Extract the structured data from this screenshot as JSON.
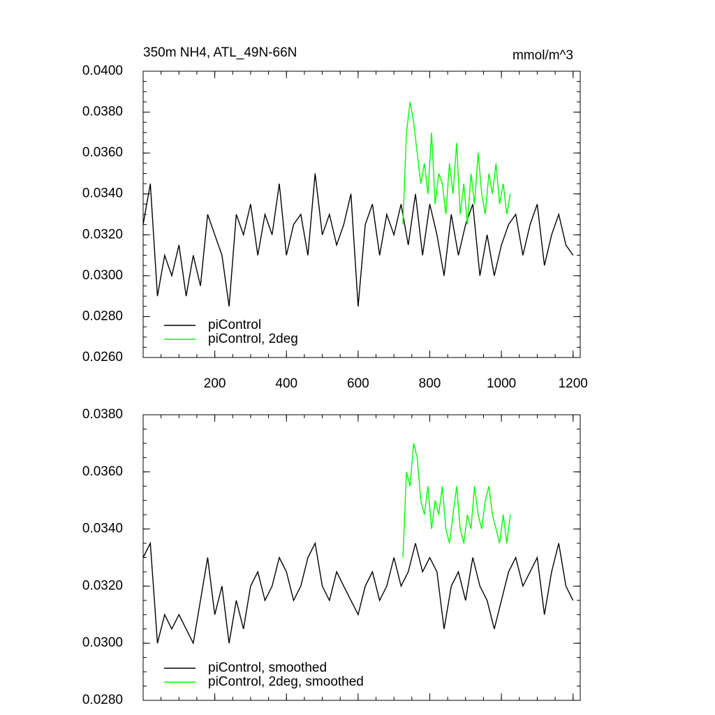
{
  "chart_data": [
    {
      "type": "line",
      "title": "350m NH4, ATL_49N-66N",
      "units_label": "mmol/m^3",
      "xlim": [
        0,
        1220
      ],
      "ylim": [
        0.026,
        0.04
      ],
      "xticks": [
        200,
        400,
        600,
        800,
        1000,
        1200
      ],
      "xtick_labels": true,
      "yticks": [
        {
          "value": 0.026,
          "label": "0.0260"
        },
        {
          "value": 0.028,
          "label": "0.0280"
        },
        {
          "value": 0.03,
          "label": "0.0300"
        },
        {
          "value": 0.032,
          "label": "0.0320"
        },
        {
          "value": 0.034,
          "label": "0.0340"
        },
        {
          "value": 0.036,
          "label": "0.0360"
        },
        {
          "value": 0.038,
          "label": "0.0380"
        },
        {
          "value": 0.04,
          "label": "0.0400"
        }
      ],
      "legend": "lower left",
      "series": [
        {
          "name": "piControl",
          "color": "#000000",
          "x": [
            0,
            20,
            40,
            60,
            80,
            100,
            120,
            140,
            160,
            180,
            200,
            220,
            240,
            260,
            280,
            300,
            320,
            340,
            360,
            380,
            400,
            420,
            440,
            460,
            480,
            500,
            520,
            540,
            560,
            580,
            600,
            620,
            640,
            660,
            680,
            700,
            720,
            740,
            760,
            780,
            800,
            820,
            840,
            860,
            880,
            900,
            920,
            940,
            960,
            980,
            1000,
            1020,
            1040,
            1060,
            1080,
            1100,
            1120,
            1140,
            1160,
            1180,
            1200
          ],
          "values": [
            0.0325,
            0.0345,
            0.029,
            0.031,
            0.03,
            0.0315,
            0.029,
            0.031,
            0.0295,
            0.033,
            0.032,
            0.031,
            0.0285,
            0.033,
            0.032,
            0.0335,
            0.031,
            0.033,
            0.032,
            0.0345,
            0.031,
            0.0325,
            0.033,
            0.031,
            0.035,
            0.032,
            0.033,
            0.0315,
            0.0325,
            0.034,
            0.0285,
            0.0325,
            0.0335,
            0.031,
            0.033,
            0.032,
            0.0335,
            0.0315,
            0.034,
            0.031,
            0.0335,
            0.032,
            0.03,
            0.033,
            0.031,
            0.0325,
            0.0335,
            0.03,
            0.032,
            0.03,
            0.0315,
            0.0325,
            0.033,
            0.031,
            0.0325,
            0.0335,
            0.0305,
            0.032,
            0.033,
            0.0315,
            0.031
          ]
        },
        {
          "name": "piControl, 2deg",
          "color": "#00ff00",
          "x": [
            725,
            735,
            745,
            755,
            765,
            775,
            785,
            795,
            805,
            815,
            825,
            835,
            845,
            855,
            865,
            875,
            885,
            895,
            905,
            915,
            925,
            935,
            945,
            955,
            965,
            975,
            985,
            995,
            1005,
            1015,
            1025
          ],
          "values": [
            0.0325,
            0.037,
            0.0385,
            0.0375,
            0.036,
            0.0345,
            0.0355,
            0.034,
            0.037,
            0.0335,
            0.035,
            0.0345,
            0.033,
            0.0355,
            0.034,
            0.0365,
            0.033,
            0.0345,
            0.0325,
            0.035,
            0.0335,
            0.036,
            0.034,
            0.033,
            0.035,
            0.034,
            0.0355,
            0.0335,
            0.0345,
            0.033,
            0.034
          ]
        }
      ]
    },
    {
      "type": "line",
      "xlim": [
        0,
        1220
      ],
      "ylim": [
        0.028,
        0.038
      ],
      "xticks": [
        200,
        400,
        600,
        800,
        1000,
        1200
      ],
      "xtick_labels": false,
      "yticks": [
        {
          "value": 0.028,
          "label": "0.0280"
        },
        {
          "value": 0.03,
          "label": "0.0300"
        },
        {
          "value": 0.032,
          "label": "0.0320"
        },
        {
          "value": 0.034,
          "label": "0.0340"
        },
        {
          "value": 0.036,
          "label": "0.0360"
        },
        {
          "value": 0.038,
          "label": "0.0380"
        }
      ],
      "legend": "lower left",
      "series": [
        {
          "name": "piControl, smoothed",
          "color": "#000000",
          "x": [
            0,
            20,
            40,
            60,
            80,
            100,
            120,
            140,
            160,
            180,
            200,
            220,
            240,
            260,
            280,
            300,
            320,
            340,
            360,
            380,
            400,
            420,
            440,
            460,
            480,
            500,
            520,
            540,
            560,
            580,
            600,
            620,
            640,
            660,
            680,
            700,
            720,
            740,
            760,
            780,
            800,
            820,
            840,
            860,
            880,
            900,
            920,
            940,
            960,
            980,
            1000,
            1020,
            1040,
            1060,
            1080,
            1100,
            1120,
            1140,
            1160,
            1180,
            1200
          ],
          "values": [
            0.033,
            0.0335,
            0.03,
            0.031,
            0.0305,
            0.031,
            0.0305,
            0.03,
            0.0315,
            0.033,
            0.031,
            0.032,
            0.03,
            0.0315,
            0.0305,
            0.032,
            0.0325,
            0.0315,
            0.032,
            0.033,
            0.0325,
            0.0315,
            0.032,
            0.033,
            0.0335,
            0.032,
            0.0315,
            0.0325,
            0.032,
            0.0315,
            0.031,
            0.032,
            0.0325,
            0.0315,
            0.032,
            0.033,
            0.032,
            0.0325,
            0.0335,
            0.0325,
            0.033,
            0.0325,
            0.0305,
            0.032,
            0.0325,
            0.0315,
            0.033,
            0.032,
            0.0315,
            0.0305,
            0.0315,
            0.0325,
            0.033,
            0.032,
            0.0325,
            0.033,
            0.031,
            0.0325,
            0.0335,
            0.032,
            0.0315
          ]
        },
        {
          "name": "piControl, 2deg, smoothed",
          "color": "#00ff00",
          "x": [
            725,
            735,
            745,
            755,
            765,
            775,
            785,
            795,
            805,
            815,
            825,
            835,
            845,
            855,
            865,
            875,
            885,
            895,
            905,
            915,
            925,
            935,
            945,
            955,
            965,
            975,
            985,
            995,
            1005,
            1015,
            1025
          ],
          "values": [
            0.033,
            0.036,
            0.0355,
            0.037,
            0.0365,
            0.035,
            0.0345,
            0.0355,
            0.034,
            0.035,
            0.0345,
            0.0355,
            0.034,
            0.0335,
            0.0345,
            0.0355,
            0.034,
            0.0335,
            0.0345,
            0.034,
            0.0355,
            0.0345,
            0.034,
            0.035,
            0.0355,
            0.0345,
            0.034,
            0.0335,
            0.0345,
            0.0335,
            0.0345
          ]
        }
      ]
    }
  ]
}
